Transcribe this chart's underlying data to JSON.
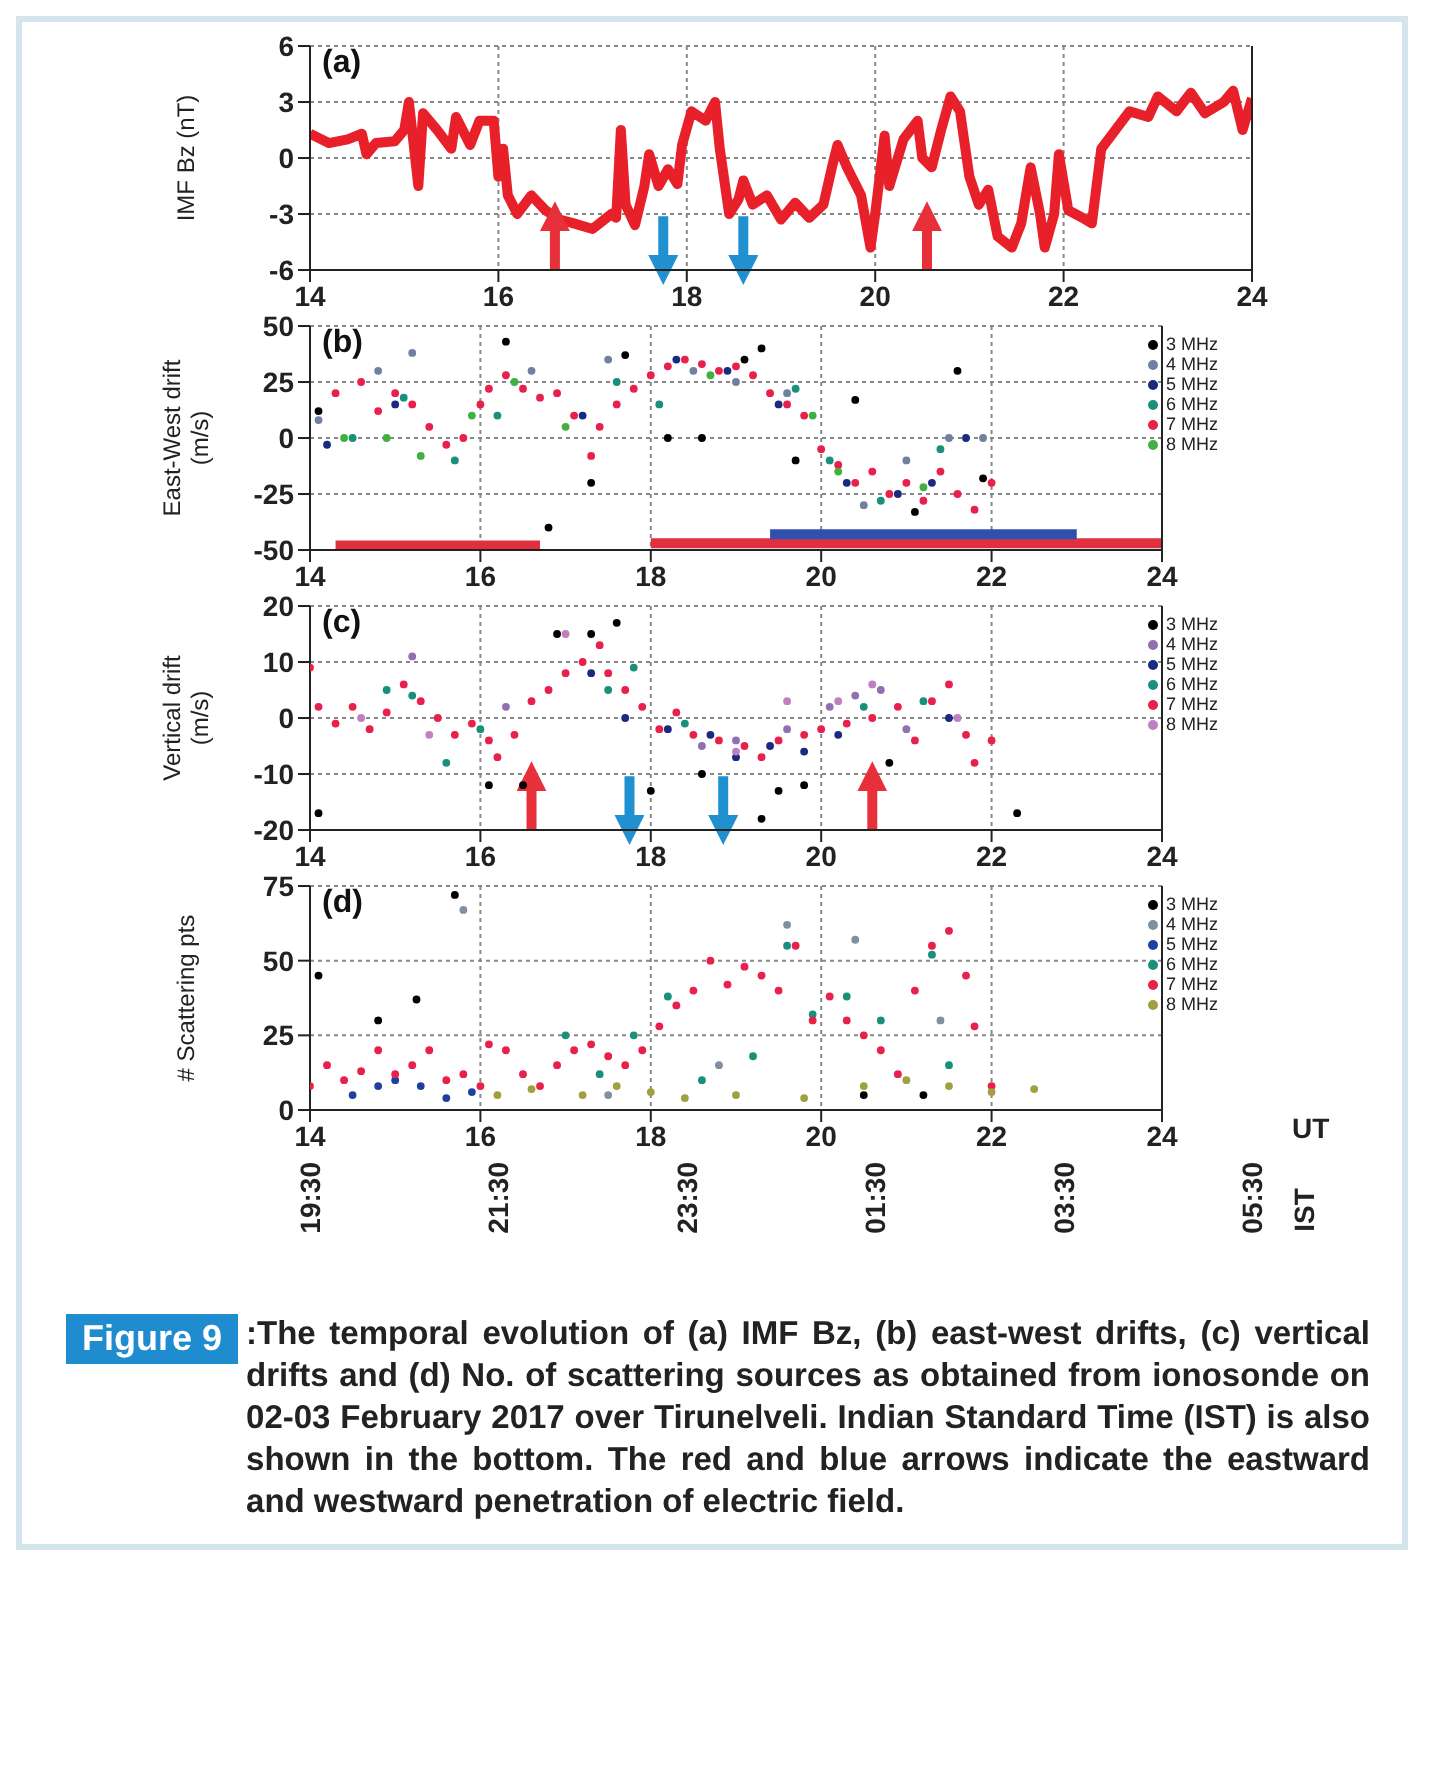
{
  "chart_data": [
    {
      "type": "line",
      "title": "(a)",
      "ylabel": "IMF Bz (nT)",
      "xlim": [
        14,
        24
      ],
      "xticks": [
        14,
        16,
        18,
        20,
        22,
        24
      ],
      "ylim": [
        -6,
        6
      ],
      "yticks": [
        -6,
        -3,
        0,
        3,
        6
      ],
      "grid": true,
      "series": [
        {
          "color": "#e8202a",
          "x": [
            14.0,
            14.2,
            14.4,
            14.55,
            14.6,
            14.7,
            14.9,
            15.0,
            15.05,
            15.15,
            15.2,
            15.35,
            15.5,
            15.55,
            15.7,
            15.8,
            15.95,
            16.0,
            16.05,
            16.1,
            16.2,
            16.35,
            16.5,
            16.65,
            16.8,
            17.0,
            17.2,
            17.25,
            17.3,
            17.35,
            17.45,
            17.55,
            17.6,
            17.7,
            17.8,
            17.9,
            17.95,
            18.05,
            18.2,
            18.3,
            18.35,
            18.45,
            18.55,
            18.6,
            18.7,
            18.85,
            19.0,
            19.15,
            19.3,
            19.45,
            19.55,
            19.6,
            19.7,
            19.85,
            19.95,
            20.0,
            20.1,
            20.15,
            20.3,
            20.45,
            20.5,
            20.6,
            20.7,
            20.8,
            20.9,
            21.0,
            21.1,
            21.2,
            21.3,
            21.45,
            21.55,
            21.65,
            21.75,
            21.8,
            21.9,
            21.95,
            22.05,
            22.2,
            22.3,
            22.4,
            22.55,
            22.7,
            22.9,
            23.0,
            23.2,
            23.35,
            23.5,
            23.7,
            23.8,
            23.9,
            24.0
          ],
          "values": [
            1.3,
            0.8,
            1.0,
            1.3,
            0.2,
            0.8,
            0.9,
            1.5,
            3.0,
            -1.5,
            2.4,
            1.5,
            0.5,
            2.2,
            0.7,
            2.0,
            2.0,
            -1.0,
            0.5,
            -2.0,
            -3.0,
            -2.0,
            -2.8,
            -3.3,
            -3.5,
            -3.8,
            -3.0,
            -3.2,
            1.5,
            -2.5,
            -3.6,
            -1.5,
            0.2,
            -1.5,
            -0.6,
            -1.4,
            0.7,
            2.5,
            2.0,
            3.0,
            0.5,
            -3.0,
            -2.2,
            -1.2,
            -2.5,
            -2.0,
            -3.3,
            -2.4,
            -3.2,
            -2.5,
            -0.3,
            0.7,
            -0.5,
            -2.0,
            -4.8,
            -3.0,
            1.2,
            -1.5,
            1.0,
            2.0,
            0.0,
            -0.5,
            1.5,
            3.3,
            2.5,
            -1.0,
            -2.5,
            -1.7,
            -4.2,
            -4.8,
            -3.5,
            -0.5,
            -3.0,
            -4.8,
            -3.0,
            0.2,
            -2.8,
            -3.2,
            -3.5,
            0.5,
            1.5,
            2.5,
            2.2,
            3.3,
            2.5,
            3.5,
            2.4,
            3.0,
            3.6,
            1.5,
            3.2
          ]
        }
      ],
      "ref_lines": [
        {
          "axis": "x",
          "value": 16.6,
          "color": "#e8303a"
        },
        {
          "axis": "x",
          "value": 17.75,
          "color": "#2090d0"
        },
        {
          "axis": "x",
          "value": 18.6,
          "color": "#2090d0"
        },
        {
          "axis": "x",
          "value": 20.55,
          "color": "#e8303a"
        }
      ]
    },
    {
      "type": "scatter",
      "title": "(b)",
      "ylabel": "East-West drift (m/s)",
      "xlim": [
        14,
        24
      ],
      "xticks": [
        14,
        16,
        18,
        20,
        22,
        24
      ],
      "ylim": [
        -50,
        50
      ],
      "yticks": [
        -50,
        -25,
        0,
        25,
        50
      ],
      "grid": true,
      "legend": "top right",
      "marker": "circle",
      "series": [
        {
          "name": "3 MHz",
          "color": "#000000",
          "x": [
            14.1,
            16.3,
            16.8,
            17.3,
            17.7,
            18.2,
            18.6,
            19.1,
            19.3,
            19.7,
            20.4,
            21.1,
            21.6,
            21.9
          ],
          "values": [
            12,
            43,
            -40,
            -20,
            37,
            0,
            0,
            35,
            40,
            -10,
            17,
            -33,
            30,
            -18
          ]
        },
        {
          "name": "4 MHz",
          "color": "#7080a0",
          "x": [
            14.1,
            14.8,
            15.2,
            16.6,
            17.5,
            18.5,
            19.0,
            19.6,
            20.5,
            21.0,
            21.5,
            21.9
          ],
          "values": [
            8,
            30,
            38,
            30,
            35,
            30,
            25,
            20,
            -30,
            -10,
            0,
            0
          ]
        },
        {
          "name": "5 MHz",
          "color": "#1a2a80",
          "x": [
            14.2,
            15.0,
            17.2,
            18.3,
            18.9,
            19.5,
            20.3,
            20.9,
            21.3,
            21.7
          ],
          "values": [
            -3,
            15,
            10,
            35,
            30,
            15,
            -20,
            -25,
            -20,
            0
          ]
        },
        {
          "name": "6 MHz",
          "color": "#18907a",
          "x": [
            14.5,
            15.1,
            15.7,
            16.2,
            17.6,
            18.1,
            19.7,
            20.1,
            20.7,
            21.4
          ],
          "values": [
            0,
            18,
            -10,
            10,
            25,
            15,
            22,
            -10,
            -28,
            -5
          ]
        },
        {
          "name": "7 MHz",
          "color": "#e8204a",
          "x": [
            14.3,
            14.6,
            14.8,
            15.0,
            15.2,
            15.4,
            15.6,
            15.8,
            16.0,
            16.1,
            16.3,
            16.5,
            16.7,
            16.9,
            17.1,
            17.3,
            17.4,
            17.6,
            17.8,
            18.0,
            18.2,
            18.4,
            18.6,
            18.8,
            19.0,
            19.2,
            19.4,
            19.6,
            19.8,
            20.0,
            20.2,
            20.4,
            20.6,
            20.8,
            21.0,
            21.2,
            21.4,
            21.6,
            21.8,
            22.0
          ],
          "values": [
            20,
            25,
            12,
            20,
            15,
            5,
            -3,
            0,
            15,
            22,
            28,
            22,
            18,
            20,
            10,
            -8,
            5,
            15,
            22,
            28,
            32,
            35,
            33,
            30,
            32,
            28,
            20,
            15,
            10,
            -5,
            -12,
            -20,
            -15,
            -25,
            -20,
            -28,
            -15,
            -25,
            -32,
            -20
          ]
        },
        {
          "name": "8 MHz",
          "color": "#40b040",
          "x": [
            14.4,
            14.9,
            15.3,
            15.9,
            16.4,
            17.0,
            18.7,
            19.9,
            20.2,
            21.2
          ],
          "values": [
            0,
            0,
            -8,
            10,
            25,
            5,
            28,
            10,
            -15,
            -22
          ]
        },
        {
          "type": "line",
          "marker": "none",
          "color": "#e03040",
          "x": [
            14.3,
            16.7
          ],
          "values": [
            -48,
            -48
          ]
        },
        {
          "type": "line",
          "marker": "none",
          "color": "#e03040",
          "x": [
            18.0,
            24.0
          ],
          "values": [
            -47,
            -47
          ]
        },
        {
          "type": "line",
          "marker": "none",
          "color": "#3050b0",
          "x": [
            19.4,
            23.0
          ],
          "values": [
            -43,
            -43
          ]
        }
      ]
    },
    {
      "type": "scatter",
      "title": "(c)",
      "ylabel": "Vertical drift (m/s)",
      "xlim": [
        14,
        24
      ],
      "xticks": [
        14,
        16,
        18,
        20,
        22,
        24
      ],
      "ylim": [
        -20,
        20
      ],
      "yticks": [
        -20,
        -10,
        0,
        10,
        20
      ],
      "grid": true,
      "legend": "top right",
      "marker": "circle",
      "series": [
        {
          "name": "3 MHz",
          "color": "#000000",
          "x": [
            14.1,
            16.1,
            16.5,
            16.9,
            17.3,
            17.6,
            18.0,
            18.6,
            19.3,
            19.5,
            19.8,
            20.8,
            22.3
          ],
          "values": [
            -17,
            -12,
            -12,
            15,
            15,
            17,
            -13,
            -10,
            -18,
            -13,
            -12,
            -8,
            -17
          ]
        },
        {
          "name": "4 MHz",
          "color": "#9070b0",
          "x": [
            15.2,
            16.3,
            18.6,
            19.0,
            19.6,
            20.1,
            20.4,
            20.7,
            21.0
          ],
          "values": [
            11,
            2,
            -5,
            -4,
            -2,
            2,
            4,
            5,
            -2
          ]
        },
        {
          "name": "5 MHz",
          "color": "#1a2a80",
          "x": [
            17.3,
            17.7,
            18.2,
            18.7,
            19.0,
            19.4,
            19.8,
            20.2,
            21.5
          ],
          "values": [
            8,
            0,
            -2,
            -3,
            -7,
            -5,
            -6,
            -3,
            0
          ]
        },
        {
          "name": "6 MHz",
          "color": "#18907a",
          "x": [
            14.9,
            15.2,
            15.6,
            16.0,
            17.5,
            17.8,
            18.4,
            20.5,
            21.2
          ],
          "values": [
            5,
            4,
            -8,
            -2,
            5,
            9,
            -1,
            2,
            3
          ]
        },
        {
          "name": "7 MHz",
          "color": "#e8204a",
          "x": [
            14.0,
            14.1,
            14.3,
            14.5,
            14.7,
            14.9,
            15.1,
            15.3,
            15.5,
            15.7,
            15.9,
            16.1,
            16.2,
            16.4,
            16.6,
            16.8,
            17.0,
            17.2,
            17.4,
            17.5,
            17.7,
            17.9,
            18.1,
            18.3,
            18.5,
            18.8,
            19.1,
            19.3,
            19.5,
            19.8,
            20.0,
            20.3,
            20.6,
            20.9,
            21.1,
            21.3,
            21.5,
            21.7,
            21.8,
            22.0
          ],
          "values": [
            9,
            2,
            -1,
            2,
            -2,
            1,
            6,
            3,
            0,
            -3,
            -1,
            -4,
            -7,
            -3,
            3,
            5,
            8,
            10,
            13,
            8,
            5,
            2,
            -2,
            1,
            -3,
            -4,
            -5,
            -7,
            -4,
            -3,
            -2,
            -1,
            0,
            2,
            -4,
            3,
            6,
            -3,
            -8,
            -4
          ]
        },
        {
          "name": "8 MHz",
          "color": "#c080c0",
          "x": [
            14.6,
            15.4,
            17.0,
            19.0,
            19.6,
            20.2,
            20.6,
            21.6
          ],
          "values": [
            0,
            -3,
            15,
            -6,
            3,
            3,
            6,
            0
          ]
        }
      ],
      "ref_lines": [
        {
          "axis": "x",
          "value": 16.6,
          "color": "#e8303a"
        },
        {
          "axis": "x",
          "value": 17.75,
          "color": "#2090d0"
        },
        {
          "axis": "x",
          "value": 18.85,
          "color": "#2090d0"
        },
        {
          "axis": "x",
          "value": 20.6,
          "color": "#e8303a"
        }
      ]
    },
    {
      "type": "scatter",
      "title": "(d)",
      "ylabel": "# Scattering pts",
      "xlabel": "UT",
      "x2label": "IST",
      "xlim": [
        14,
        24
      ],
      "xticks": [
        14,
        16,
        18,
        20,
        22,
        24
      ],
      "x2lim": [
        "2017-02-02T19:30",
        "2017-02-03T05:30"
      ],
      "x2ticks": [
        {
          "value": "2017-02-02T19:30",
          "label": "19:30"
        },
        {
          "value": "2017-02-02T21:30",
          "label": "21:30"
        },
        {
          "value": "2017-02-02T23:30",
          "label": "23:30"
        },
        {
          "value": "2017-02-03T01:30",
          "label": "01:30"
        },
        {
          "value": "2017-02-03T03:30",
          "label": "03:30"
        },
        {
          "value": "2017-02-03T05:30",
          "label": "05:30"
        }
      ],
      "ylim": [
        0,
        75
      ],
      "yticks": [
        0,
        25,
        50,
        75
      ],
      "grid": true,
      "legend": "top right",
      "marker": "circle",
      "series": [
        {
          "name": "3 MHz",
          "color": "#000000",
          "x": [
            14.1,
            14.8,
            15.25,
            15.7,
            20.5,
            21.2
          ],
          "values": [
            45,
            30,
            37,
            72,
            5,
            5
          ]
        },
        {
          "name": "4 MHz",
          "color": "#8090a0",
          "x": [
            15.8,
            17.5,
            18.8,
            19.6,
            20.4,
            21.4
          ],
          "values": [
            67,
            5,
            15,
            62,
            57,
            30
          ]
        },
        {
          "name": "5 MHz",
          "color": "#2040a0",
          "x": [
            14.5,
            14.8,
            15.0,
            15.3,
            15.6,
            15.9
          ],
          "values": [
            5,
            8,
            10,
            8,
            4,
            6
          ]
        },
        {
          "name": "6 MHz",
          "color": "#18907a",
          "x": [
            17.0,
            17.4,
            17.8,
            18.2,
            18.6,
            19.2,
            19.6,
            19.9,
            20.3,
            20.7,
            21.3,
            21.5
          ],
          "values": [
            25,
            12,
            25,
            38,
            10,
            18,
            55,
            32,
            38,
            30,
            52,
            15
          ]
        },
        {
          "name": "7 MHz",
          "color": "#e8204a",
          "x": [
            14.0,
            14.2,
            14.4,
            14.6,
            14.8,
            15.0,
            15.2,
            15.4,
            15.6,
            15.8,
            16.0,
            16.1,
            16.3,
            16.5,
            16.7,
            16.9,
            17.1,
            17.3,
            17.5,
            17.7,
            17.9,
            18.1,
            18.3,
            18.5,
            18.7,
            18.9,
            19.1,
            19.3,
            19.5,
            19.7,
            19.9,
            20.1,
            20.3,
            20.5,
            20.7,
            20.9,
            21.1,
            21.3,
            21.5,
            21.7,
            21.8,
            22.0
          ],
          "values": [
            8,
            15,
            10,
            13,
            20,
            12,
            15,
            20,
            10,
            12,
            8,
            22,
            20,
            12,
            8,
            15,
            20,
            22,
            18,
            15,
            20,
            28,
            35,
            40,
            50,
            42,
            48,
            45,
            40,
            55,
            30,
            38,
            30,
            25,
            20,
            12,
            40,
            55,
            60,
            45,
            28,
            8
          ]
        },
        {
          "name": "8 MHz",
          "color": "#a0a040",
          "x": [
            16.2,
            16.6,
            17.2,
            17.6,
            18.0,
            18.4,
            19.0,
            19.8,
            20.5,
            21.0,
            21.5,
            22.0,
            22.5
          ],
          "values": [
            5,
            7,
            5,
            8,
            6,
            4,
            5,
            4,
            8,
            10,
            8,
            6,
            7
          ]
        }
      ],
      "annotations": [
        "Figure 9",
        ":The temporal evolution of (a) IMF Bz, (b) east-west drifts, (c) vertical drifts and (d) No. of scattering sources as obtained from ionosonde on 02-03 February 2017 over Tirunelveli. Indian Standard Time (IST) is also shown in the bottom. The red and blue arrows indicate the eastward and westward penetration of electric field."
      ]
    }
  ]
}
